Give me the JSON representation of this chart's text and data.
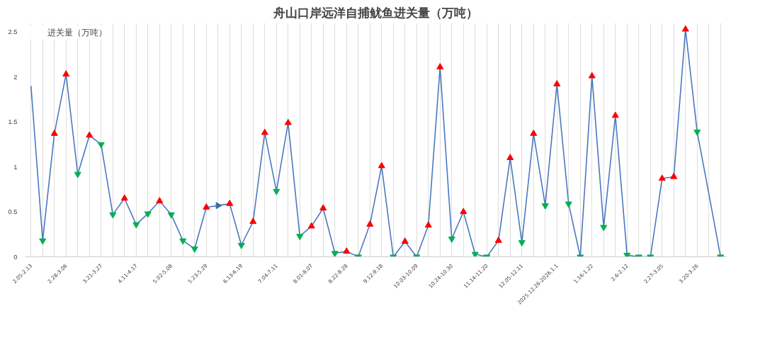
{
  "chart_data": {
    "type": "line",
    "title": "舟山口岸远洋自捕鱿鱼进关量（万吨）",
    "categories": [
      "2.05-2.13",
      null,
      null,
      "2.28-3.06",
      null,
      null,
      "3.21-3.27",
      null,
      null,
      "4.11-4.17",
      null,
      null,
      "5.02-5.08",
      null,
      null,
      "5.23-5.29",
      null,
      null,
      "6.13-6.19",
      null,
      null,
      "7.04-7.11",
      null,
      null,
      "8.01-8.07",
      null,
      null,
      "8.22-8.28",
      null,
      null,
      "9.12-9.18",
      null,
      null,
      "10.03-10.09",
      null,
      null,
      "10.24-10.30",
      null,
      null,
      "11.14-11.20",
      null,
      null,
      "12.05-12.11",
      null,
      null,
      "2025.12.26-2026.1.1",
      null,
      null,
      "1.16-1.22",
      null,
      null,
      "2.6-2.12",
      null,
      null,
      "2.27-3.05",
      null,
      null,
      "3.20-3.26",
      null,
      null
    ],
    "series": [
      {
        "name": "进关量（万吨）",
        "color": "#4a78c0",
        "marker": "none",
        "values": [
          1.9,
          0.18,
          1.37,
          2.03,
          0.92,
          1.35,
          1.25,
          0.47,
          0.65,
          0.36,
          0.48,
          0.62,
          0.47,
          0.18,
          0.09,
          0.55,
          0.57,
          0.59,
          0.13,
          0.39,
          1.38,
          0.73,
          1.49,
          0.23,
          0.34,
          0.54,
          0.04,
          0.06,
          0,
          0.36,
          1.01,
          0,
          0.17,
          0,
          0.35,
          2.11,
          0.2,
          0.5,
          0.03,
          0,
          0.18,
          1.1,
          0.16,
          1.37,
          0.57,
          1.92,
          0.59,
          0,
          2.01,
          0.33,
          1.57,
          0.02,
          0,
          0,
          0.87,
          0.89,
          2.53,
          1.39,
          0.7,
          0
        ]
      },
      {
        "color": "#ff0000",
        "type": "scatter",
        "marker": "triangle",
        "values": [
          null,
          null,
          1.37,
          2.03,
          null,
          1.35,
          null,
          null,
          0.65,
          null,
          null,
          0.62,
          null,
          null,
          null,
          0.55,
          null,
          0.59,
          null,
          0.39,
          1.38,
          null,
          1.49,
          null,
          0.34,
          0.54,
          null,
          0.06,
          null,
          0.36,
          1.01,
          null,
          0.17,
          null,
          0.35,
          2.11,
          null,
          0.5,
          null,
          null,
          0.18,
          1.1,
          null,
          1.37,
          null,
          1.92,
          null,
          null,
          2.01,
          null,
          1.57,
          null,
          null,
          null,
          0.87,
          0.89,
          2.53,
          null,
          null,
          null
        ]
      },
      {
        "color": "#00b050",
        "type": "scatter",
        "marker": "triangle_down",
        "values": [
          null,
          0.18,
          null,
          null,
          0.92,
          null,
          1.25,
          0.47,
          null,
          0.36,
          0.48,
          null,
          0.47,
          0.18,
          0.09,
          null,
          null,
          null,
          0.13,
          null,
          null,
          0.73,
          null,
          0.23,
          null,
          null,
          0.04,
          null,
          0,
          null,
          null,
          0,
          null,
          0,
          null,
          null,
          0.2,
          null,
          0.03,
          0,
          null,
          null,
          0.16,
          null,
          0.57,
          null,
          0.59,
          0,
          null,
          0.33,
          null,
          0.02,
          0,
          0,
          null,
          null,
          null,
          1.39,
          null,
          0
        ]
      },
      {
        "color": "#3a6ea5",
        "type": "scatter",
        "marker": "triangle_right",
        "values": [
          null,
          null,
          null,
          null,
          null,
          null,
          null,
          null,
          null,
          null,
          null,
          null,
          null,
          null,
          null,
          null,
          0.57,
          null,
          null,
          null,
          null,
          null,
          null,
          null,
          null,
          null,
          null,
          null,
          null,
          null,
          null,
          null,
          null,
          null,
          null,
          null,
          null,
          null,
          null,
          null,
          null,
          null,
          null,
          null,
          null,
          null,
          null,
          null,
          null,
          null,
          null,
          null,
          null,
          null,
          null,
          null,
          null,
          null,
          null,
          null
        ]
      }
    ],
    "ylim": [
      0,
      2.6
    ],
    "yticks": [
      0,
      0.5,
      1,
      1.5,
      2,
      2.5
    ],
    "grid": "x",
    "legend": "top left"
  }
}
